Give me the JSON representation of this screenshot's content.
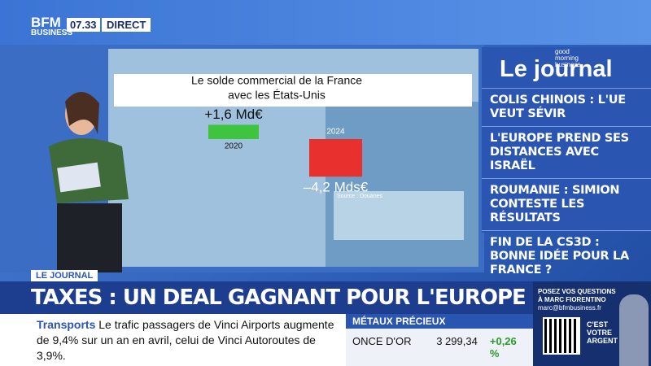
{
  "header": {
    "logo_top": "BFM",
    "logo_bottom": "BUSINESS",
    "time": "07.33",
    "live": "DIRECT"
  },
  "chart_data": {
    "type": "bar",
    "title_lines": [
      "Le solde commercial de la France",
      "avec les États-Unis"
    ],
    "categories": [
      "2020",
      "2024"
    ],
    "values": [
      1.6,
      -4.2
    ],
    "value_labels": [
      "+1,6 Md€",
      "–4,2 Mds€"
    ],
    "colors": [
      "#3ec43e",
      "#e8312f"
    ],
    "source": "Source : Douanes"
  },
  "sidebar": {
    "brand_small": "good morning business",
    "brand": "Le journal",
    "headlines": [
      "COLIS CHINOIS : L'UE VEUT SÉVIR",
      "L'EUROPE PREND SES DISTANCES AVEC ISRAËL",
      "ROUMANIE : SIMION CONTESTE LES RÉSULTATS",
      "FIN DE LA CS3D : BONNE IDÉE POUR LA FRANCE ?"
    ]
  },
  "lower_third": {
    "tag": "LE JOURNAL",
    "headline": "TAXES : UN DEAL GAGNANT POUR L'EUROPE ?"
  },
  "ticker": {
    "topic": "Transports",
    "text": "Le trafic passagers de Vinci Airports augmente de 9,4% sur un an en avril, celui de Vinci Autoroutes de 3,9%."
  },
  "market": {
    "title": "MÉTAUX PRÉCIEUX",
    "name": "ONCE D'OR",
    "value": "3 299,34",
    "change": "+0,26 %"
  },
  "promo": {
    "line1": "POSEZ VOS QUESTIONS",
    "line2": "À MARC FIORENTINO",
    "email": "marc@bfmbusiness.fr",
    "show": "C'EST VOTRE ARGENT"
  }
}
